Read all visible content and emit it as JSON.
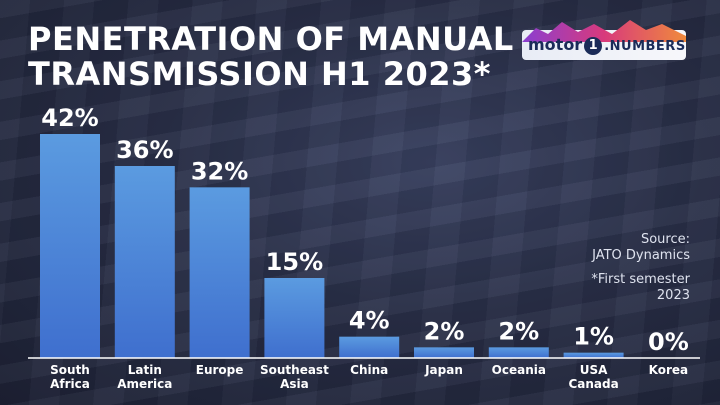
{
  "title_line1": "PENETRATION OF MANUAL",
  "title_line2": "TRANSMISSION H1 2023*",
  "logo": {
    "word": "motor",
    "one": "1",
    "suffix": ".NUMBERS"
  },
  "source": {
    "line1": "Source:",
    "line2": "JATO Dynamics",
    "note1": "*First semester",
    "note2": "2023"
  },
  "colors": {
    "bar_top": "#5b9be0",
    "bar_bottom": "#3f6fce",
    "background": "#2a3049",
    "axis": "#ffffff"
  },
  "chart_data": {
    "type": "bar",
    "title": "PENETRATION OF MANUAL TRANSMISSION H1 2023*",
    "categories": [
      "South Africa",
      "Latin America",
      "Europe",
      "Southeast Asia",
      "China",
      "Japan",
      "Oceania",
      "USA Canada",
      "Korea"
    ],
    "category_lines": [
      [
        "South",
        "Africa"
      ],
      [
        "Latin",
        "America"
      ],
      [
        "Europe"
      ],
      [
        "Southeast",
        "Asia"
      ],
      [
        "China"
      ],
      [
        "Japan"
      ],
      [
        "Oceania"
      ],
      [
        "USA",
        "Canada"
      ],
      [
        "Korea"
      ]
    ],
    "values": [
      42,
      36,
      32,
      15,
      4,
      2,
      2,
      1,
      0
    ],
    "value_labels": [
      "42%",
      "36%",
      "32%",
      "15%",
      "4%",
      "2%",
      "2%",
      "1%",
      "0%"
    ],
    "xlabel": "",
    "ylabel": "",
    "ylim": [
      0,
      42
    ],
    "grid": false
  }
}
